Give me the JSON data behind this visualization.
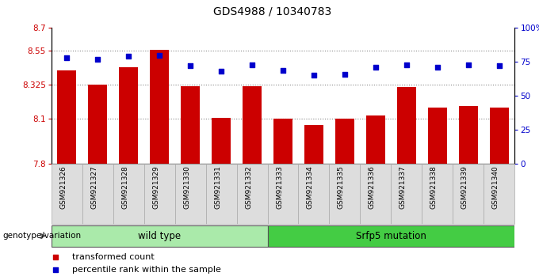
{
  "title": "GDS4988 / 10340783",
  "samples": [
    "GSM921326",
    "GSM921327",
    "GSM921328",
    "GSM921329",
    "GSM921330",
    "GSM921331",
    "GSM921332",
    "GSM921333",
    "GSM921334",
    "GSM921335",
    "GSM921336",
    "GSM921337",
    "GSM921338",
    "GSM921339",
    "GSM921340"
  ],
  "bar_values": [
    8.42,
    8.325,
    8.44,
    8.555,
    8.315,
    8.105,
    8.315,
    8.1,
    8.055,
    8.1,
    8.12,
    8.31,
    8.175,
    8.185,
    8.175
  ],
  "dot_values": [
    78,
    77,
    79,
    80,
    72,
    68,
    73,
    69,
    65,
    66,
    71,
    73,
    71,
    73,
    72
  ],
  "ylim_left": [
    7.8,
    8.7
  ],
  "ylim_right": [
    0,
    100
  ],
  "yticks_left": [
    7.8,
    8.1,
    8.325,
    8.55,
    8.7
  ],
  "ytick_labels_left": [
    "7.8",
    "8.1",
    "8.325",
    "8.55",
    "8.7"
  ],
  "yticks_right": [
    0,
    25,
    50,
    75,
    100
  ],
  "ytick_labels_right": [
    "0",
    "25",
    "50",
    "75",
    "100%"
  ],
  "bar_color": "#cc0000",
  "dot_color": "#0000cc",
  "bar_bottom": 7.8,
  "groups": [
    {
      "label": "wild type",
      "start": 0,
      "end": 6,
      "color": "#aaeaaa"
    },
    {
      "label": "Srfp5 mutation",
      "start": 7,
      "end": 14,
      "color": "#44cc44"
    }
  ],
  "genotype_label": "genotype/variation",
  "legend_items": [
    {
      "label": "transformed count",
      "color": "#cc0000"
    },
    {
      "label": "percentile rank within the sample",
      "color": "#0000cc"
    }
  ],
  "grid_color": "#888888",
  "left_tick_color": "#cc0000",
  "right_tick_color": "#0000cc",
  "title_fontsize": 10,
  "tick_fontsize": 7.5,
  "label_fontsize": 8,
  "xticklabel_fontsize": 6.5,
  "bg_color": "#dddddd",
  "cell_edge_color": "#aaaaaa"
}
